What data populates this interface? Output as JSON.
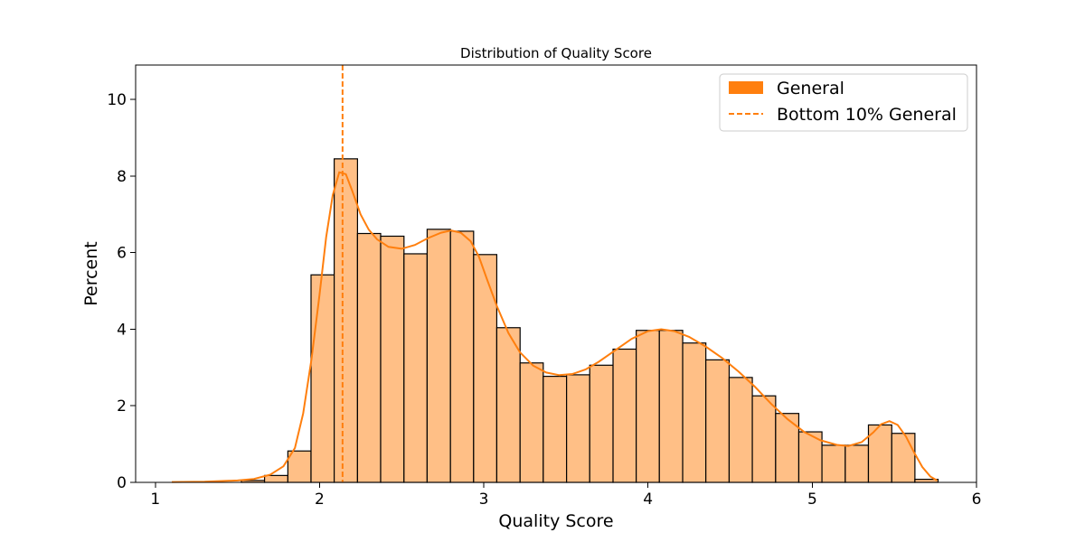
{
  "chart_data": {
    "type": "bar",
    "title": "Distribution of Quality Score",
    "xlabel": "Quality Score",
    "ylabel": "Percent",
    "xlim": [
      0.88,
      6.0
    ],
    "ylim": [
      0,
      10.9
    ],
    "xticks": [
      1,
      2,
      3,
      4,
      5,
      6
    ],
    "yticks": [
      0,
      2,
      4,
      6,
      8,
      10
    ],
    "grid": false,
    "legend_position": "top-right",
    "bin_width": 0.1414,
    "bins": [
      {
        "x0": 1.524,
        "x1": 1.665,
        "value": 0.05
      },
      {
        "x0": 1.665,
        "x1": 1.807,
        "value": 0.18
      },
      {
        "x0": 1.807,
        "x1": 1.948,
        "value": 0.82
      },
      {
        "x0": 1.948,
        "x1": 2.089,
        "value": 5.42
      },
      {
        "x0": 2.089,
        "x1": 2.231,
        "value": 8.45
      },
      {
        "x0": 2.231,
        "x1": 2.372,
        "value": 6.5
      },
      {
        "x0": 2.372,
        "x1": 2.514,
        "value": 6.43
      },
      {
        "x0": 2.514,
        "x1": 2.655,
        "value": 5.97
      },
      {
        "x0": 2.655,
        "x1": 2.797,
        "value": 6.61
      },
      {
        "x0": 2.797,
        "x1": 2.938,
        "value": 6.56
      },
      {
        "x0": 2.938,
        "x1": 3.079,
        "value": 5.95
      },
      {
        "x0": 3.079,
        "x1": 3.221,
        "value": 4.04
      },
      {
        "x0": 3.221,
        "x1": 3.362,
        "value": 3.12
      },
      {
        "x0": 3.362,
        "x1": 3.504,
        "value": 2.77
      },
      {
        "x0": 3.504,
        "x1": 3.645,
        "value": 2.81
      },
      {
        "x0": 3.645,
        "x1": 3.787,
        "value": 3.06
      },
      {
        "x0": 3.787,
        "x1": 3.928,
        "value": 3.48
      },
      {
        "x0": 3.928,
        "x1": 4.069,
        "value": 3.97
      },
      {
        "x0": 4.069,
        "x1": 4.211,
        "value": 3.97
      },
      {
        "x0": 4.211,
        "x1": 4.352,
        "value": 3.64
      },
      {
        "x0": 4.352,
        "x1": 4.494,
        "value": 3.2
      },
      {
        "x0": 4.494,
        "x1": 4.635,
        "value": 2.74
      },
      {
        "x0": 4.635,
        "x1": 4.777,
        "value": 2.26
      },
      {
        "x0": 4.777,
        "x1": 4.918,
        "value": 1.8
      },
      {
        "x0": 4.918,
        "x1": 5.059,
        "value": 1.32
      },
      {
        "x0": 5.059,
        "x1": 5.201,
        "value": 0.97
      },
      {
        "x0": 5.201,
        "x1": 5.342,
        "value": 0.97
      },
      {
        "x0": 5.342,
        "x1": 5.484,
        "value": 1.5
      },
      {
        "x0": 5.484,
        "x1": 5.625,
        "value": 1.28
      },
      {
        "x0": 5.625,
        "x1": 5.766,
        "value": 0.08
      }
    ],
    "kde": [
      [
        1.1,
        0.01
      ],
      [
        1.3,
        0.02
      ],
      [
        1.5,
        0.05
      ],
      [
        1.6,
        0.09
      ],
      [
        1.7,
        0.2
      ],
      [
        1.78,
        0.42
      ],
      [
        1.85,
        0.9
      ],
      [
        1.9,
        1.8
      ],
      [
        1.95,
        3.2
      ],
      [
        2.0,
        4.9
      ],
      [
        2.04,
        6.4
      ],
      [
        2.08,
        7.5
      ],
      [
        2.12,
        8.1
      ],
      [
        2.16,
        8.05
      ],
      [
        2.2,
        7.6
      ],
      [
        2.25,
        7.0
      ],
      [
        2.3,
        6.6
      ],
      [
        2.35,
        6.35
      ],
      [
        2.42,
        6.15
      ],
      [
        2.5,
        6.1
      ],
      [
        2.58,
        6.2
      ],
      [
        2.66,
        6.38
      ],
      [
        2.74,
        6.52
      ],
      [
        2.8,
        6.58
      ],
      [
        2.86,
        6.52
      ],
      [
        2.92,
        6.3
      ],
      [
        2.97,
        5.9
      ],
      [
        3.02,
        5.3
      ],
      [
        3.08,
        4.6
      ],
      [
        3.15,
        3.9
      ],
      [
        3.22,
        3.4
      ],
      [
        3.3,
        3.05
      ],
      [
        3.38,
        2.87
      ],
      [
        3.46,
        2.8
      ],
      [
        3.54,
        2.83
      ],
      [
        3.62,
        2.95
      ],
      [
        3.7,
        3.15
      ],
      [
        3.8,
        3.45
      ],
      [
        3.9,
        3.75
      ],
      [
        4.0,
        3.95
      ],
      [
        4.08,
        4.0
      ],
      [
        4.16,
        3.95
      ],
      [
        4.25,
        3.8
      ],
      [
        4.35,
        3.55
      ],
      [
        4.45,
        3.25
      ],
      [
        4.55,
        2.9
      ],
      [
        4.65,
        2.5
      ],
      [
        4.75,
        2.05
      ],
      [
        4.85,
        1.65
      ],
      [
        4.95,
        1.32
      ],
      [
        5.05,
        1.1
      ],
      [
        5.15,
        0.98
      ],
      [
        5.22,
        0.95
      ],
      [
        5.3,
        1.05
      ],
      [
        5.37,
        1.3
      ],
      [
        5.42,
        1.52
      ],
      [
        5.47,
        1.6
      ],
      [
        5.52,
        1.5
      ],
      [
        5.57,
        1.2
      ],
      [
        5.62,
        0.78
      ],
      [
        5.67,
        0.4
      ],
      [
        5.72,
        0.15
      ],
      [
        5.76,
        0.05
      ]
    ],
    "series": [
      {
        "name": "General",
        "kind": "histogram",
        "fill_color": "#ffbf86",
        "edge_color": "#000000",
        "line_color": "#ff7f0e"
      }
    ],
    "reference_lines": [
      {
        "name": "Bottom 10% General",
        "x": 2.14,
        "color": "#ff7f0e",
        "style": "dashed"
      }
    ],
    "legend": {
      "items": [
        {
          "label": "General",
          "swatch": "patch",
          "color": "#ff7f0e"
        },
        {
          "label": "Bottom 10% General",
          "swatch": "dashed-line",
          "color": "#ff7f0e"
        }
      ]
    }
  }
}
